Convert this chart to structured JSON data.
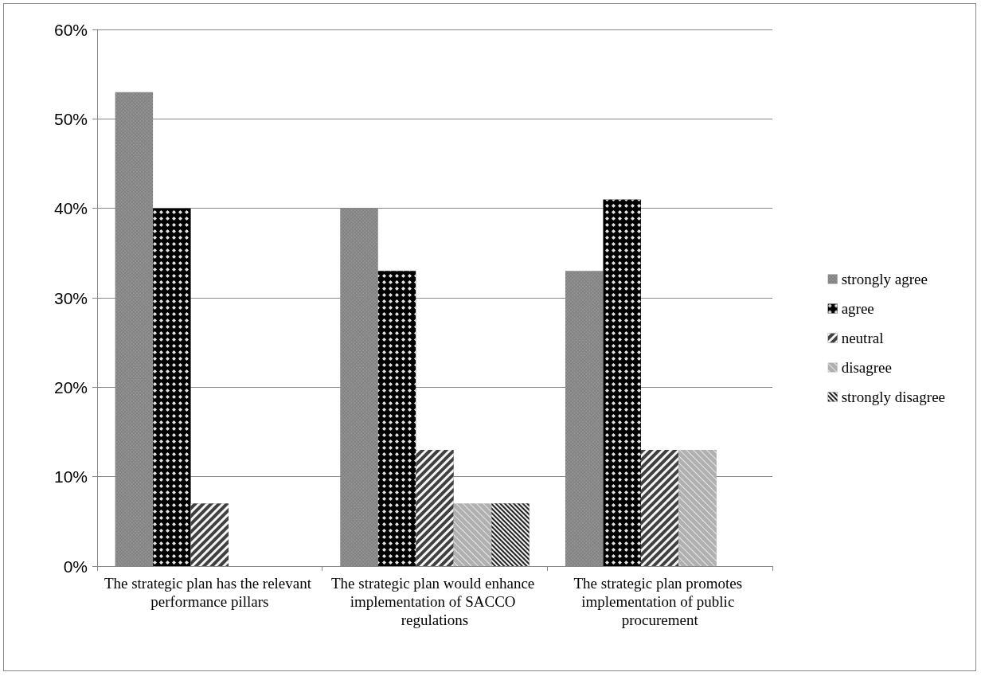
{
  "chart_data": {
    "type": "bar",
    "categories": [
      "The strategic plan has the relevant performance pillars",
      "The strategic plan would enhance implementation of SACCO regulations",
      "The strategic plan promotes implementation of public procurement"
    ],
    "series": [
      {
        "name": "strongly agree",
        "color": "#808080",
        "values": [
          53,
          40,
          33
        ]
      },
      {
        "name": "agree",
        "color": "#000000",
        "values": [
          40,
          33,
          41
        ]
      },
      {
        "name": "neutral",
        "color": "#404040",
        "values": [
          7,
          13,
          13
        ]
      },
      {
        "name": "disagree",
        "color": "#b0b0b0",
        "values": [
          null,
          7,
          13
        ]
      },
      {
        "name": "strongly disagree",
        "color": "#202020",
        "values": [
          null,
          7,
          null
        ]
      }
    ],
    "ylim": [
      0,
      60
    ],
    "yticks": [
      {
        "value": 0,
        "label": "0%"
      },
      {
        "value": 10,
        "label": "10%"
      },
      {
        "value": 20,
        "label": "20%"
      },
      {
        "value": 30,
        "label": "30%"
      },
      {
        "value": 40,
        "label": "40%"
      },
      {
        "value": 50,
        "label": "50%"
      },
      {
        "value": 60,
        "label": "60%"
      }
    ],
    "grid": "y",
    "legend": "right"
  }
}
